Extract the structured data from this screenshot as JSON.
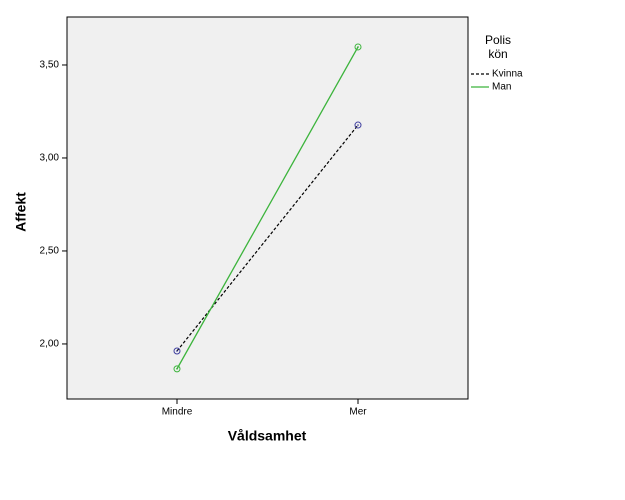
{
  "chart_data": {
    "type": "line",
    "x_label": "Våldsamhet",
    "y_label": "Affekt",
    "legend_title": [
      "Polis",
      "kön"
    ],
    "categories": [
      "Mindre",
      "Mer"
    ],
    "series": [
      {
        "name": "Kvinna",
        "color": "#000000",
        "marker_color": "#3f3f9f",
        "dashed": true,
        "values": [
          1.962,
          3.177
        ]
      },
      {
        "name": "Man",
        "color": "#3cb43c",
        "marker_color": "#3cb43c",
        "dashed": false,
        "values": [
          1.866,
          3.597
        ]
      }
    ],
    "ylim": [
      1.704,
      3.758
    ],
    "yticks": [
      {
        "value": 2,
        "label": "2,00"
      },
      {
        "value": 2.5,
        "label": "2,50"
      },
      {
        "value": 3,
        "label": "3,00"
      },
      {
        "value": 3.5,
        "label": "3,50"
      }
    ],
    "plot_background": "#f0f0f0"
  }
}
